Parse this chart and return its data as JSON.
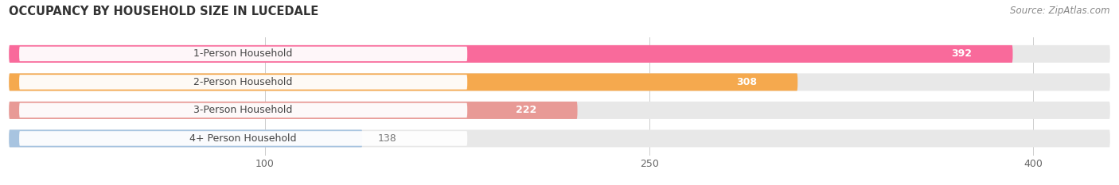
{
  "title": "OCCUPANCY BY HOUSEHOLD SIZE IN LUCEDALE",
  "source": "Source: ZipAtlas.com",
  "categories": [
    "1-Person Household",
    "2-Person Household",
    "3-Person Household",
    "4+ Person Household"
  ],
  "values": [
    392,
    308,
    222,
    138
  ],
  "bar_colors": [
    "#F96A9B",
    "#F5A94E",
    "#E89A96",
    "#A8C4E0"
  ],
  "bar_bg_color": "#E8E8E8",
  "label_bg_color": "#FFFFFF",
  "value_label_color_inside": "#FFFFFF",
  "value_label_color_outside": "#777777",
  "x_ticks": [
    100,
    250,
    400
  ],
  "xlim_max": 430,
  "title_fontsize": 10.5,
  "source_fontsize": 8.5,
  "label_fontsize": 9,
  "tick_fontsize": 9,
  "bar_height": 0.62,
  "figsize": [
    14.06,
    2.33
  ],
  "dpi": 100
}
